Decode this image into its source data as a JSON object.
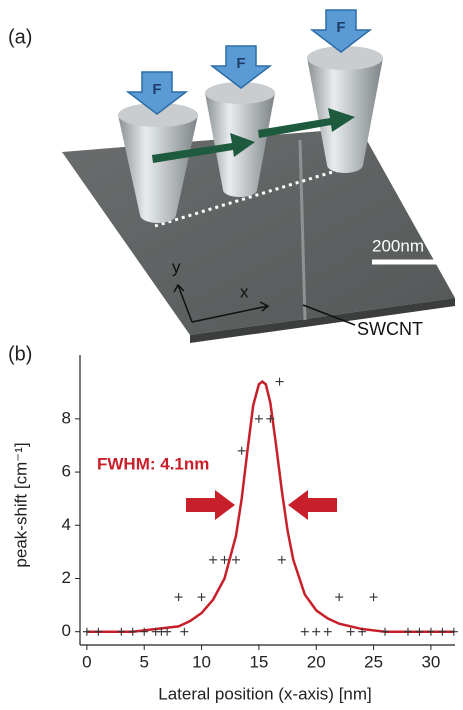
{
  "panel_a": {
    "label": "(a)",
    "force_labels": [
      "F",
      "F",
      "F"
    ],
    "scale_bar": "200nm",
    "axis_x": "x",
    "axis_y": "y",
    "annotation": "SWCNT"
  },
  "chart_data": {
    "type": "scatter",
    "label": "(b)",
    "x_label": "Lateral position (x-axis) [nm]",
    "y_label": "peak-shift [cm⁻¹]",
    "annotation": "FWHM: 4.1nm",
    "points": {
      "marker": "+",
      "color": "#333333",
      "x": [
        0,
        1,
        3,
        4,
        5,
        6,
        6.5,
        7,
        8,
        8.5,
        10,
        11,
        12,
        13,
        13.5,
        15,
        16,
        16.8,
        17,
        19,
        20,
        21,
        22,
        23,
        24,
        25,
        26,
        28,
        29,
        30,
        31,
        32
      ],
      "y": [
        0,
        0,
        0,
        0,
        0,
        0,
        0,
        0,
        1.3,
        0,
        1.3,
        2.7,
        2.7,
        2.7,
        6.8,
        8,
        8,
        9.4,
        2.7,
        0,
        0,
        0,
        1.3,
        0,
        0,
        1.3,
        0,
        0,
        0,
        0,
        0,
        0
      ]
    },
    "fit": {
      "color": "#c8202a",
      "x": [
        0,
        4,
        6,
        8,
        9,
        10,
        11,
        12,
        13,
        13.5,
        14,
        14.5,
        15,
        15.3,
        15.6,
        16,
        16.5,
        17,
        17.5,
        18,
        19,
        20,
        21,
        22,
        24,
        26,
        28,
        32
      ],
      "y": [
        0,
        0,
        0.1,
        0.2,
        0.4,
        0.7,
        1.2,
        2.0,
        3.6,
        5.0,
        6.8,
        8.5,
        9.3,
        9.4,
        9.3,
        8.6,
        7.0,
        5.3,
        3.8,
        2.7,
        1.4,
        0.8,
        0.5,
        0.3,
        0.1,
        0,
        0,
        0
      ]
    },
    "xlim": [
      -0.6,
      32.1
    ],
    "ylim": [
      -0.5,
      10.4
    ],
    "xticks": [
      0,
      5,
      10,
      15,
      20,
      25,
      30
    ],
    "yticks": [
      0,
      2,
      4,
      6,
      8
    ]
  }
}
